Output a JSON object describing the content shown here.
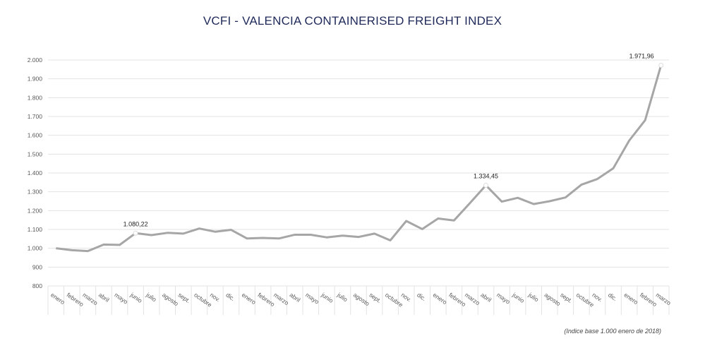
{
  "chart_data": {
    "type": "line",
    "title": "VCFI - VALENCIA CONTAINERISED FREIGHT INDEX",
    "footnote": "(Indice base 1.000 enero de 2018)",
    "xlabel": "",
    "ylabel": "",
    "ylim": [
      800,
      2000
    ],
    "yticks": [
      "800",
      "900",
      "1.000",
      "1.100",
      "1.200",
      "1.300",
      "1.400",
      "1.500",
      "1.600",
      "1.700",
      "1.800",
      "1.900",
      "2.000"
    ],
    "grid": true,
    "legend": "none",
    "line_color": "#a6a6a6",
    "categories": [
      "enero",
      "febrero",
      "marzo",
      "abril",
      "mayo",
      "junio",
      "julio",
      "agosto",
      "sept.",
      "octubre",
      "nov.",
      "dic.",
      "enero",
      "febrero",
      "marzo",
      "abril",
      "mayo",
      "junio",
      "julio",
      "agosto",
      "sept.",
      "octubre",
      "nov.",
      "dic.",
      "enero",
      "febrero",
      "marzo",
      "abril",
      "mayo",
      "junio",
      "julio",
      "agosto",
      "sept.",
      "octubre",
      "nov.",
      "dic.",
      "enero",
      "febrero",
      "marzo"
    ],
    "values": [
      1000,
      990,
      985,
      1020,
      1018,
      1080.22,
      1070,
      1082,
      1078,
      1105,
      1088,
      1098,
      1052,
      1055,
      1052,
      1072,
      1072,
      1058,
      1067,
      1060,
      1078,
      1042,
      1145,
      1102,
      1158,
      1148,
      1240,
      1334.45,
      1248,
      1268,
      1235,
      1250,
      1270,
      1338,
      1368,
      1425,
      1572,
      1680,
      1971.96
    ],
    "annotations": [
      {
        "index": 5,
        "label": "1.080,22"
      },
      {
        "index": 27,
        "label": "1.334,45"
      },
      {
        "index": 38,
        "label": "1.971,96"
      }
    ]
  }
}
